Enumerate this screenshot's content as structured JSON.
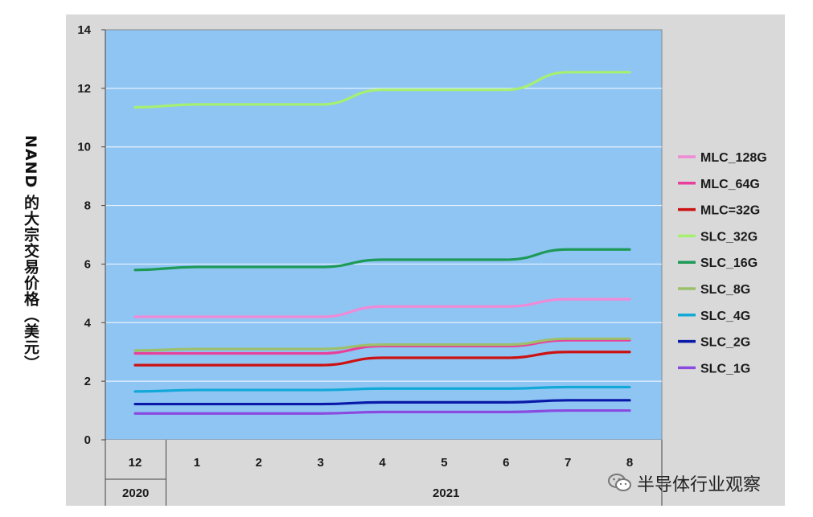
{
  "chart_data": {
    "type": "line",
    "ylabel": "NAND 的大宗交易价格（美元）",
    "ylim": [
      0,
      14
    ],
    "yticks": [
      "0",
      "2",
      "4",
      "6",
      "8",
      "10",
      "12",
      "14"
    ],
    "x": [
      "12",
      "1",
      "2",
      "3",
      "4",
      "5",
      "6",
      "7",
      "8"
    ],
    "year_labels": [
      "2020",
      "2021"
    ],
    "grid": true,
    "legend_position": "right",
    "series": [
      {
        "name": "MLC_128G",
        "color": "#f08ad6",
        "values": [
          4.2,
          4.2,
          4.2,
          4.2,
          4.55,
          4.55,
          4.55,
          4.8,
          4.8
        ]
      },
      {
        "name": "MLC_64G",
        "color": "#e8409a",
        "values": [
          2.95,
          2.95,
          2.95,
          2.95,
          3.2,
          3.2,
          3.2,
          3.4,
          3.4
        ]
      },
      {
        "name": "MLC=32G",
        "color": "#cc1111",
        "values": [
          2.55,
          2.55,
          2.55,
          2.55,
          2.8,
          2.8,
          2.8,
          3.0,
          3.0
        ]
      },
      {
        "name": "SLC_32G",
        "color": "#a6f070",
        "values": [
          11.35,
          11.45,
          11.45,
          11.45,
          11.95,
          11.95,
          11.95,
          12.55,
          12.55
        ]
      },
      {
        "name": "SLC_16G",
        "color": "#1e9a58",
        "values": [
          5.8,
          5.9,
          5.9,
          5.9,
          6.15,
          6.15,
          6.15,
          6.5,
          6.5
        ]
      },
      {
        "name": "SLC_8G",
        "color": "#9cc06a",
        "values": [
          3.05,
          3.1,
          3.1,
          3.1,
          3.25,
          3.25,
          3.25,
          3.45,
          3.45
        ]
      },
      {
        "name": "SLC_4G",
        "color": "#12a8d8",
        "values": [
          1.65,
          1.7,
          1.7,
          1.7,
          1.75,
          1.75,
          1.75,
          1.8,
          1.8
        ]
      },
      {
        "name": "SLC_2G",
        "color": "#0a1aa8",
        "values": [
          1.22,
          1.22,
          1.22,
          1.22,
          1.28,
          1.28,
          1.28,
          1.35,
          1.35
        ]
      },
      {
        "name": "SLC_1G",
        "color": "#8a4ae0",
        "values": [
          0.9,
          0.9,
          0.9,
          0.9,
          0.95,
          0.95,
          0.95,
          1.0,
          1.0
        ]
      }
    ]
  },
  "watermark": {
    "icon": "wechat-icon",
    "text": "半导体行业观察"
  }
}
